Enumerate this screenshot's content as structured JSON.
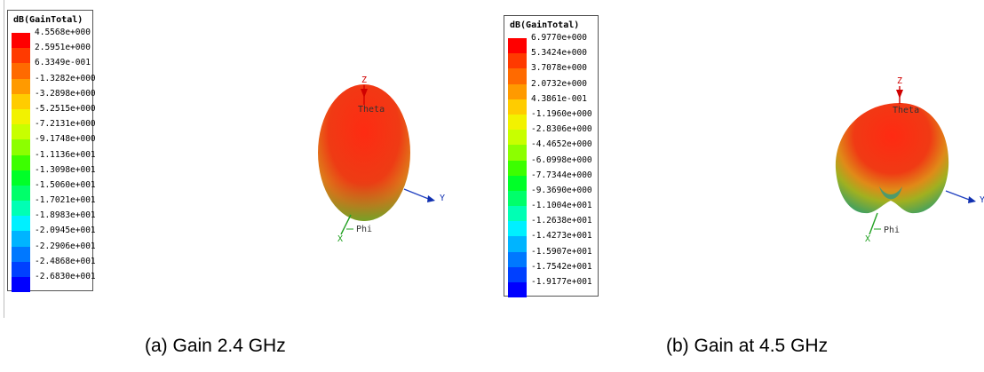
{
  "colors": {
    "scale": [
      "#ff0000",
      "#ff3a00",
      "#ff6a00",
      "#ff9a00",
      "#ffcc00",
      "#f2f200",
      "#c8ff00",
      "#8cff00",
      "#3cff00",
      "#00ff28",
      "#00ff6a",
      "#00ffb4",
      "#00f0ff",
      "#00b4ff",
      "#0078ff",
      "#0040ff",
      "#0000ff"
    ]
  },
  "panels": [
    {
      "legend_title": "dB(GainTotal)",
      "legend_values": [
        "4.5568e+000",
        "2.5951e+000",
        "6.3349e-001",
        "-1.3282e+000",
        "-3.2898e+000",
        "-5.2515e+000",
        "-7.2131e+000",
        "-9.1748e+000",
        "-1.1136e+001",
        "-1.3098e+001",
        "-1.5060e+001",
        "-1.7021e+001",
        "-1.8983e+001",
        "-2.0945e+001",
        "-2.2906e+001",
        "-2.4868e+001",
        "-2.6830e+001"
      ],
      "axis_z": "Z",
      "axis_y": "Y",
      "label_theta": "Theta",
      "label_phi": "Phi",
      "caption": "(a) Gain 2.4 GHz"
    },
    {
      "legend_title": "dB(GainTotal)",
      "legend_values": [
        "6.9770e+000",
        "5.3424e+000",
        "3.7078e+000",
        "2.0732e+000",
        "4.3861e-001",
        "-1.1960e+000",
        "-2.8306e+000",
        "-4.4652e+000",
        "-6.0998e+000",
        "-7.7344e+000",
        "-9.3690e+000",
        "-1.1004e+001",
        "-1.2638e+001",
        "-1.4273e+001",
        "-1.5907e+001",
        "-1.7542e+001",
        "-1.9177e+001"
      ],
      "axis_z": "Z",
      "axis_y": "Y",
      "label_theta": "Theta",
      "label_phi": "Phi",
      "caption": "(b) Gain at 4.5 GHz"
    }
  ]
}
